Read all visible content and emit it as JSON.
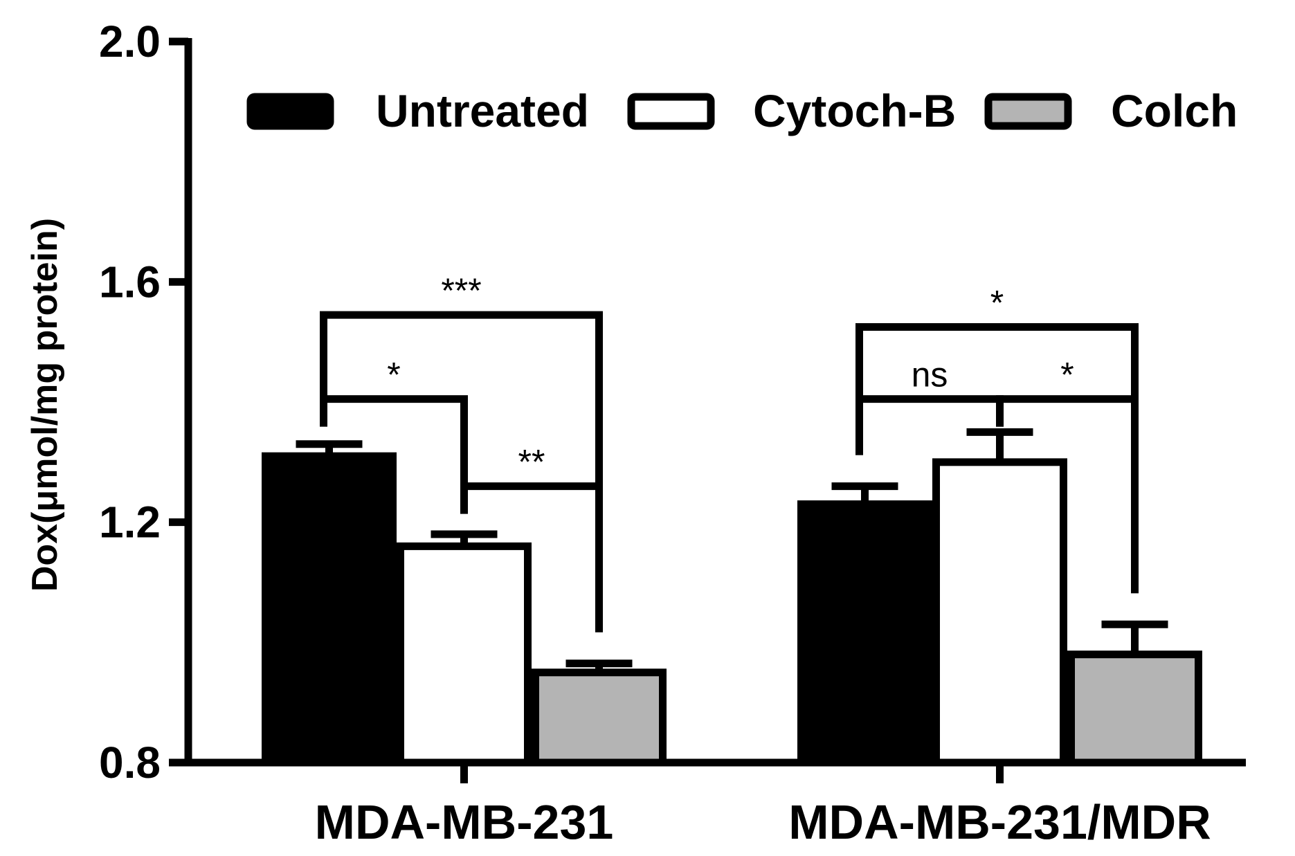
{
  "chart_data": {
    "type": "bar",
    "ylabel": "Dox(μmol/mg protein)",
    "xlabel": "",
    "ylim": [
      0.8,
      2.0
    ],
    "yticks": [
      0.8,
      1.2,
      1.6,
      2.0
    ],
    "ytick_labels": [
      "0.8",
      "1.2",
      "1.6",
      "2.0"
    ],
    "categories": [
      "MDA-MB-231",
      "MDA-MB-231/MDR"
    ],
    "legend_position": "top",
    "series": [
      {
        "name": "Untreated",
        "color": "#000000",
        "values": [
          1.31,
          1.23
        ],
        "errors": [
          0.02,
          0.03
        ]
      },
      {
        "name": "Cytoch-B",
        "color": "#ffffff",
        "values": [
          1.16,
          1.3
        ],
        "errors": [
          0.02,
          0.05
        ]
      },
      {
        "name": "Colch",
        "color": "#b4b4b4",
        "values": [
          0.95,
          0.98
        ],
        "errors": [
          0.015,
          0.05
        ]
      }
    ],
    "significance": [
      {
        "category": 0,
        "from": 0,
        "to": 1,
        "label": "*",
        "level": 1.405
      },
      {
        "category": 0,
        "from": 1,
        "to": 2,
        "label": "**",
        "level": 1.26
      },
      {
        "category": 0,
        "from": 0,
        "to": 2,
        "label": "***",
        "level": 1.545
      },
      {
        "category": 1,
        "from": 0,
        "to": 1,
        "label": "ns",
        "level": 1.405
      },
      {
        "category": 1,
        "from": 1,
        "to": 2,
        "label": "*",
        "level": 1.405
      },
      {
        "category": 1,
        "from": 0,
        "to": 2,
        "label": "*",
        "level": 1.525
      }
    ]
  }
}
